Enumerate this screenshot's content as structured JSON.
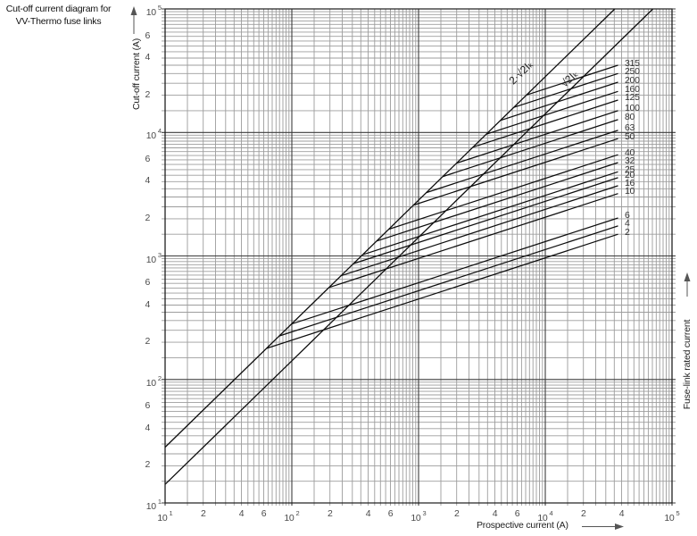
{
  "header": {
    "title_line1": "Cut-off current diagram for",
    "title_line2": "VV-Thermo fuse links"
  },
  "axes": {
    "x": {
      "title": "Prospective current (A)",
      "decade_exponents": [
        1,
        2,
        3,
        4,
        5
      ],
      "minor_labels_per_decade": [
        [
          2,
          4,
          6
        ],
        [
          2,
          4,
          6
        ],
        [
          2,
          4,
          6
        ],
        [
          2,
          4
        ]
      ]
    },
    "y": {
      "title": "Cut-off current (A)",
      "decade_exponents": [
        5,
        4,
        3,
        2,
        1
      ],
      "minor_labels_per_decade": [
        [
          6,
          4,
          2
        ],
        [
          6,
          4,
          2
        ],
        [
          6,
          4,
          2
        ],
        [
          6,
          4,
          2
        ]
      ]
    },
    "right": {
      "title": "Fuse-link rated current"
    }
  },
  "chart_data": {
    "type": "line",
    "scale": "log-log",
    "title": "Cut-off current diagram for VV-Thermo fuse links",
    "xlabel": "Prospective current (A)",
    "ylabel": "Cut-off current (A)",
    "xlim": [
      10,
      100000
    ],
    "ylim": [
      10,
      100000
    ],
    "grid": "log major + half-step minors",
    "reference_lines": [
      {
        "label": "2·√2Iₖ",
        "relation": "cut-off = 2.828 × prospective",
        "factor": 2.828
      },
      {
        "label": "√2Iₖ",
        "relation": "cut-off = 1.414 × prospective",
        "factor": 1.414
      }
    ],
    "fuse_curves": {
      "description": "Current-limiting characteristics; each curve leaves the 2·√2·Ik line and rises with log-log slope 1/3 up to the right end where its rating is labelled.",
      "slope_loglog": 0.333,
      "end_prospective_A": 37500,
      "ratings_A": [
        315,
        250,
        200,
        160,
        125,
        100,
        80,
        63,
        50,
        40,
        32,
        25,
        20,
        16,
        10,
        6,
        4,
        2
      ],
      "cutoff_at_end_A": [
        35000,
        30000,
        25500,
        21500,
        18300,
        15000,
        12700,
        10400,
        8900,
        6600,
        5700,
        4800,
        4300,
        3700,
        3200,
        2030,
        1750,
        1500
      ]
    }
  },
  "colors": {
    "curve": "#0d0d0d",
    "grid_major": "#3c3c3c",
    "grid_minor": "#9d9d9d",
    "tick_text": "#4a4a4a",
    "arrow": "#555555"
  }
}
